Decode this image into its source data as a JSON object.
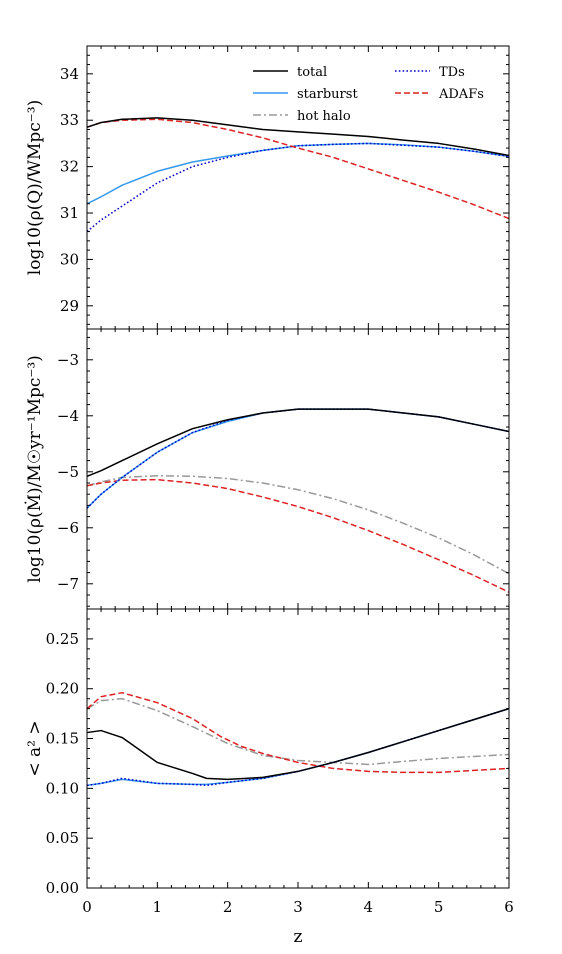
{
  "chart_data": {
    "type": "line",
    "xlabel": "z",
    "xlim": [
      0,
      6
    ],
    "xticks": [
      "0",
      "1",
      "2",
      "3",
      "4",
      "5",
      "6"
    ],
    "legend_position": "top-right of upper panel",
    "legend": [
      {
        "key": "total",
        "label": "total",
        "color": "#000000",
        "dash": "solid"
      },
      {
        "key": "starburst",
        "label": "starburst",
        "color": "#3399ee",
        "dash": "solid"
      },
      {
        "key": "hothalo",
        "label": "hot halo",
        "color": "#999999",
        "dash": "dashdot"
      },
      {
        "key": "tds",
        "label": "TDs",
        "color": "#0000cc",
        "dash": "dotted"
      },
      {
        "key": "adafs",
        "label": "ADAFs",
        "color": "#dd2222",
        "dash": "dashed"
      }
    ],
    "panels": [
      {
        "ylabel": "log10(ρ(Q)/WMpc⁻³)",
        "ylim": [
          28.5,
          34.6
        ],
        "yticks": [
          29,
          30,
          31,
          32,
          33,
          34
        ],
        "yticklabels": [
          "29",
          "30",
          "31",
          "32",
          "33",
          "34"
        ],
        "series": [
          {
            "key": "starburst",
            "x": [
              0,
              0.2,
              0.5,
              1,
              1.5,
              2,
              2.5,
              3,
              3.5,
              4,
              4.5,
              5,
              5.5,
              6
            ],
            "y": [
              31.2,
              31.35,
              31.6,
              31.9,
              32.1,
              32.23,
              32.35,
              32.45,
              32.48,
              32.5,
              32.47,
              32.42,
              32.33,
              32.22
            ]
          },
          {
            "key": "tds",
            "x": [
              0,
              0.2,
              0.5,
              1,
              1.5,
              2,
              2.5,
              3,
              3.5,
              4,
              4.5,
              5,
              5.5,
              6
            ],
            "y": [
              30.6,
              30.85,
              31.15,
              31.65,
              32.0,
              32.2,
              32.35,
              32.45,
              32.48,
              32.5,
              32.46,
              32.42,
              32.33,
              32.22
            ]
          },
          {
            "key": "adafs",
            "x": [
              0,
              0.2,
              0.5,
              1,
              1.5,
              2,
              2.5,
              3,
              3.5,
              4,
              4.5,
              5,
              5.5,
              6
            ],
            "y": [
              32.85,
              32.95,
              33.0,
              33.02,
              32.95,
              32.8,
              32.62,
              32.4,
              32.2,
              31.95,
              31.7,
              31.45,
              31.18,
              30.88
            ]
          },
          {
            "key": "total",
            "x": [
              0,
              0.2,
              0.5,
              1,
              1.5,
              2,
              2.5,
              3,
              3.5,
              4,
              4.5,
              5,
              5.5,
              6
            ],
            "y": [
              32.85,
              32.95,
              33.02,
              33.05,
              33.0,
              32.9,
              32.8,
              32.75,
              32.7,
              32.65,
              32.57,
              32.5,
              32.38,
              32.24
            ]
          }
        ]
      },
      {
        "ylabel": "log10(ρ(Ṁ)/M☉yr⁻¹Mpc⁻³)",
        "ylim": [
          -7.45,
          -2.45
        ],
        "yticks": [
          -7,
          -6,
          -5,
          -4,
          -3
        ],
        "yticklabels": [
          "−7",
          "−6",
          "−5",
          "−4",
          "−3"
        ],
        "series": [
          {
            "key": "hothalo",
            "x": [
              0,
              0.2,
              0.5,
              1,
              1.5,
              2,
              2.5,
              3,
              3.5,
              4,
              4.5,
              5,
              5.5,
              6
            ],
            "y": [
              -5.25,
              -5.18,
              -5.1,
              -5.07,
              -5.08,
              -5.12,
              -5.2,
              -5.32,
              -5.48,
              -5.68,
              -5.92,
              -6.18,
              -6.48,
              -6.82
            ]
          },
          {
            "key": "adafs",
            "x": [
              0,
              0.2,
              0.5,
              1,
              1.5,
              2,
              2.5,
              3,
              3.5,
              4,
              4.5,
              5,
              5.5,
              6
            ],
            "y": [
              -5.25,
              -5.2,
              -5.15,
              -5.14,
              -5.2,
              -5.3,
              -5.45,
              -5.62,
              -5.82,
              -6.05,
              -6.3,
              -6.57,
              -6.85,
              -7.15
            ]
          },
          {
            "key": "starburst",
            "x": [
              0,
              0.2,
              0.5,
              1,
              1.5,
              2,
              2.5,
              3,
              3.5,
              4,
              4.5,
              5,
              5.5,
              6
            ],
            "y": [
              -5.65,
              -5.4,
              -5.1,
              -4.65,
              -4.3,
              -4.1,
              -3.95,
              -3.88,
              -3.88,
              -3.88,
              -3.95,
              -4.02,
              -4.15,
              -4.28
            ]
          },
          {
            "key": "tds",
            "x": [
              0,
              0.2,
              0.5,
              1,
              1.5,
              2,
              2.5,
              3,
              3.5,
              4,
              4.5,
              5,
              5.5,
              6
            ],
            "y": [
              -5.65,
              -5.4,
              -5.1,
              -4.65,
              -4.3,
              -4.08,
              -3.95,
              -3.88,
              -3.88,
              -3.88,
              -3.95,
              -4.02,
              -4.15,
              -4.28
            ]
          },
          {
            "key": "total",
            "x": [
              0,
              0.2,
              0.5,
              1,
              1.5,
              2,
              2.5,
              3,
              3.5,
              4,
              4.5,
              5,
              5.5,
              6
            ],
            "y": [
              -5.08,
              -4.98,
              -4.8,
              -4.5,
              -4.23,
              -4.07,
              -3.95,
              -3.88,
              -3.88,
              -3.88,
              -3.95,
              -4.02,
              -4.15,
              -4.28
            ]
          }
        ]
      },
      {
        "ylabel": "< a² >",
        "ylim": [
          0,
          0.28
        ],
        "yticks": [
          0,
          0.05,
          0.1,
          0.15,
          0.2,
          0.25
        ],
        "yticklabels": [
          "0.00",
          "0.05",
          "0.10",
          "0.15",
          "0.20",
          "0.25"
        ],
        "series": [
          {
            "key": "hothalo",
            "x": [
              0,
              0.2,
              0.5,
              1,
              1.5,
              2,
              2.5,
              3,
              3.5,
              4,
              4.5,
              5,
              5.5,
              6
            ],
            "y": [
              0.18,
              0.188,
              0.19,
              0.178,
              0.162,
              0.145,
              0.133,
              0.128,
              0.126,
              0.124,
              0.127,
              0.13,
              0.132,
              0.134
            ]
          },
          {
            "key": "adafs",
            "x": [
              0,
              0.2,
              0.5,
              1,
              1.5,
              1.9,
              2.2,
              2.5,
              3,
              3.5,
              4,
              4.5,
              5,
              5.5,
              6
            ],
            "y": [
              0.18,
              0.192,
              0.196,
              0.186,
              0.17,
              0.152,
              0.142,
              0.135,
              0.126,
              0.12,
              0.117,
              0.116,
              0.116,
              0.118,
              0.12
            ]
          },
          {
            "key": "starburst",
            "x": [
              0,
              0.2,
              0.5,
              1,
              1.5,
              1.7,
              2,
              2.5,
              3,
              3.5,
              4,
              4.5,
              5,
              5.5,
              6
            ],
            "y": [
              0.103,
              0.105,
              0.109,
              0.105,
              0.104,
              0.104,
              0.106,
              0.11,
              0.117,
              0.126,
              0.136,
              0.147,
              0.158,
              0.169,
              0.18
            ]
          },
          {
            "key": "tds",
            "x": [
              0,
              0.2,
              0.5,
              1,
              1.5,
              1.7,
              2,
              2.5,
              3,
              3.5,
              4,
              4.5,
              5,
              5.5,
              6
            ],
            "y": [
              0.103,
              0.105,
              0.11,
              0.105,
              0.104,
              0.103,
              0.106,
              0.11,
              0.117,
              0.126,
              0.136,
              0.147,
              0.158,
              0.169,
              0.18
            ]
          },
          {
            "key": "total",
            "x": [
              0,
              0.2,
              0.5,
              1,
              1.5,
              1.7,
              2,
              2.5,
              3,
              3.5,
              4,
              4.5,
              5,
              5.5,
              6
            ],
            "y": [
              0.156,
              0.158,
              0.151,
              0.126,
              0.115,
              0.11,
              0.109,
              0.111,
              0.117,
              0.126,
              0.136,
              0.147,
              0.158,
              0.169,
              0.18
            ]
          }
        ]
      }
    ]
  }
}
